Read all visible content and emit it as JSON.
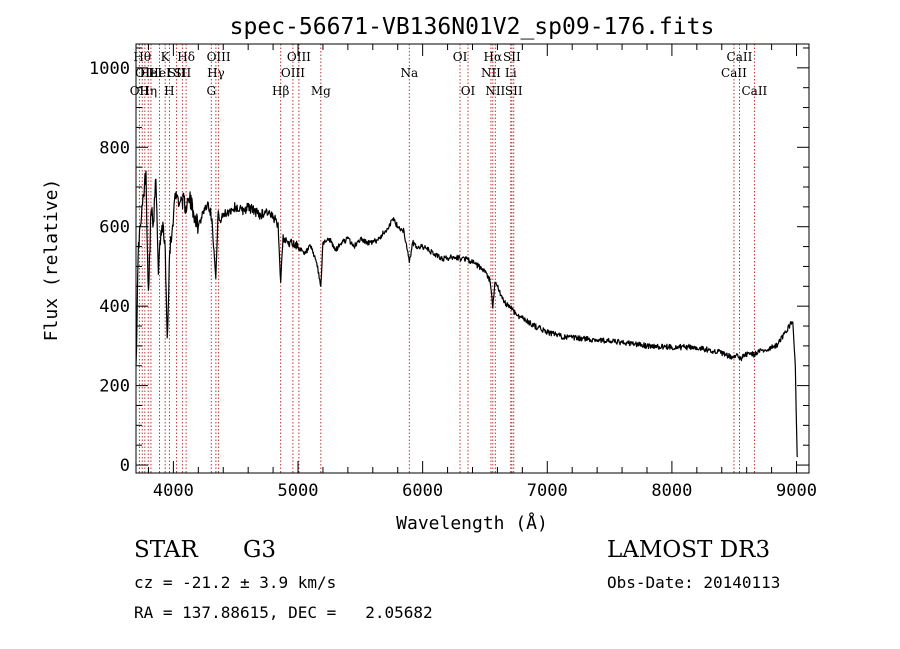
{
  "chart_data": {
    "type": "line",
    "title": "spec-56671-VB136N01V2_sp09-176.fits",
    "xlabel": "Wavelength (Å)",
    "ylabel": "Flux (relative)",
    "xlim": [
      3700,
      9100
    ],
    "ylim": [
      -20,
      1060
    ],
    "xticks": [
      4000,
      5000,
      6000,
      7000,
      8000,
      9000
    ],
    "xtick_labels": [
      "4000",
      "5000",
      "6000",
      "7000",
      "8000",
      "9000"
    ],
    "yticks": [
      0,
      200,
      400,
      600,
      800,
      1000
    ],
    "ytick_labels": [
      "0",
      "200",
      "400",
      "600",
      "800",
      "1000"
    ],
    "grid": false,
    "line_color": "#000000",
    "marker_color": "#b22222",
    "series": [
      {
        "name": "spectrum",
        "x": [
          3700,
          3720,
          3740,
          3760,
          3780,
          3790,
          3800,
          3820,
          3840,
          3860,
          3880,
          3900,
          3920,
          3935,
          3950,
          3970,
          3990,
          4010,
          4030,
          4050,
          4070,
          4100,
          4130,
          4160,
          4200,
          4240,
          4280,
          4310,
          4330,
          4340,
          4360,
          4380,
          4400,
          4450,
          4500,
          4550,
          4600,
          4650,
          4700,
          4750,
          4800,
          4840,
          4861,
          4880,
          4900,
          4950,
          5000,
          5050,
          5100,
          5150,
          5170,
          5183,
          5200,
          5250,
          5300,
          5350,
          5400,
          5450,
          5500,
          5550,
          5600,
          5650,
          5700,
          5730,
          5760,
          5780,
          5800,
          5850,
          5893,
          5920,
          5950,
          6000,
          6050,
          6100,
          6150,
          6200,
          6250,
          6300,
          6350,
          6400,
          6450,
          6500,
          6540,
          6563,
          6580,
          6600,
          6650,
          6700,
          6750,
          6800,
          6900,
          7000,
          7100,
          7200,
          7300,
          7400,
          7500,
          7600,
          7700,
          7800,
          7900,
          8000,
          8100,
          8200,
          8300,
          8400,
          8450,
          8498,
          8520,
          8542,
          8580,
          8620,
          8662,
          8700,
          8750,
          8800,
          8850,
          8900,
          8940,
          8970,
          8990,
          9000,
          9005
        ],
        "values": [
          250,
          560,
          610,
          680,
          740,
          560,
          440,
          640,
          610,
          720,
          480,
          590,
          600,
          540,
          320,
          540,
          590,
          670,
          680,
          660,
          670,
          650,
          670,
          640,
          600,
          640,
          660,
          620,
          520,
          470,
          640,
          610,
          630,
          640,
          650,
          640,
          650,
          640,
          630,
          640,
          620,
          610,
          460,
          580,
          560,
          560,
          550,
          530,
          550,
          510,
          470,
          450,
          560,
          570,
          540,
          560,
          570,
          550,
          570,
          560,
          560,
          570,
          590,
          600,
          620,
          610,
          600,
          590,
          510,
          560,
          550,
          550,
          540,
          530,
          520,
          520,
          525,
          520,
          520,
          510,
          500,
          485,
          465,
          395,
          460,
          450,
          410,
          400,
          380,
          370,
          350,
          335,
          325,
          320,
          318,
          315,
          312,
          308,
          305,
          300,
          298,
          297,
          297,
          296,
          290,
          282,
          275,
          270,
          280,
          265,
          275,
          282,
          278,
          285,
          290,
          295,
          305,
          330,
          350,
          360,
          250,
          100,
          20
        ]
      }
    ],
    "line_markers": [
      {
        "wavelength": 3727,
        "row": 2,
        "label": "OII"
      },
      {
        "wavelength": 3750,
        "row": 0,
        "label": "Hθ"
      },
      {
        "wavelength": 3771,
        "row": 1,
        "label": "OII"
      },
      {
        "wavelength": 3798,
        "row": 2,
        "label": "Hη"
      },
      {
        "wavelength": 3820,
        "row": 1,
        "label": "HeI"
      },
      {
        "wavelength": 3889,
        "row": 1,
        "label": "HeI"
      },
      {
        "wavelength": 3934,
        "row": 0,
        "label": "K"
      },
      {
        "wavelength": 3968,
        "row": 2,
        "label": "H"
      },
      {
        "wavelength": 4026,
        "row": 1,
        "label": "SII"
      },
      {
        "wavelength": 4072,
        "row": 1,
        "label": "SII"
      },
      {
        "wavelength": 4102,
        "row": 0,
        "label": "Hδ"
      },
      {
        "wavelength": 4304,
        "row": 2,
        "label": "G"
      },
      {
        "wavelength": 4341,
        "row": 1,
        "label": "Hγ"
      },
      {
        "wavelength": 4363,
        "row": 0,
        "label": "OIII"
      },
      {
        "wavelength": 4861,
        "row": 2,
        "label": "Hβ"
      },
      {
        "wavelength": 4959,
        "row": 1,
        "label": "OIII"
      },
      {
        "wavelength": 5007,
        "row": 0,
        "label": "OIII"
      },
      {
        "wavelength": 5183,
        "row": 2,
        "label": "Mg"
      },
      {
        "wavelength": 5893,
        "row": 1,
        "label": "Na"
      },
      {
        "wavelength": 6300,
        "row": 0,
        "label": "OI"
      },
      {
        "wavelength": 6364,
        "row": 2,
        "label": "OI"
      },
      {
        "wavelength": 6548,
        "row": 1,
        "label": "NII"
      },
      {
        "wavelength": 6563,
        "row": 0,
        "label": "Hα"
      },
      {
        "wavelength": 6583,
        "row": 2,
        "label": "NII"
      },
      {
        "wavelength": 6707,
        "row": 1,
        "label": "Li"
      },
      {
        "wavelength": 6716,
        "row": 0,
        "label": "SII"
      },
      {
        "wavelength": 6731,
        "row": 2,
        "label": "SII"
      },
      {
        "wavelength": 8498,
        "row": 1,
        "label": "CaII"
      },
      {
        "wavelength": 8542,
        "row": 0,
        "label": "CaII"
      },
      {
        "wavelength": 8662,
        "row": 2,
        "label": "CaII"
      }
    ]
  },
  "info": {
    "object_class": "STAR",
    "subclass": "G3",
    "survey": "LAMOST DR3",
    "cz": "cz = -21.2 ± 3.9 km/s",
    "obs_date": "Obs-Date: 20140113",
    "coords": "RA = 137.88615, DEC =   2.05682"
  }
}
